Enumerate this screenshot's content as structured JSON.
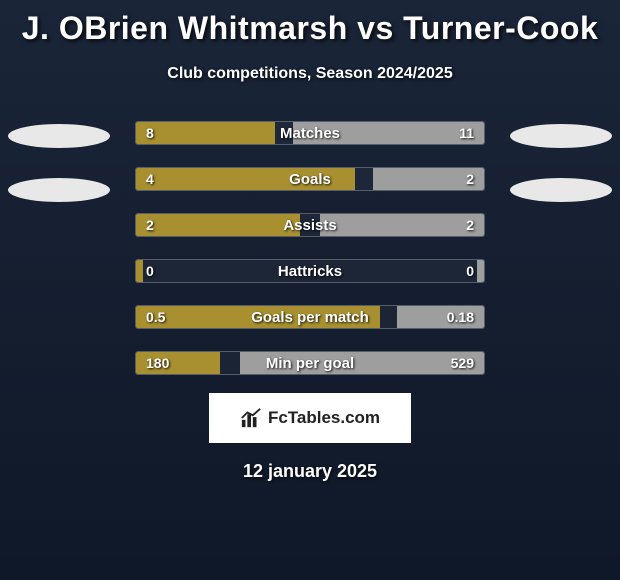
{
  "title": "J. OBrien Whitmarsh vs Turner-Cook",
  "subtitle": "Club competitions, Season 2024/2025",
  "date": "12 january 2025",
  "logo_text": "FcTables.com",
  "avatars": {
    "left_color": "#e8e8e8",
    "right_color": "#e8e8e8"
  },
  "colors": {
    "bar_left": "#a89030",
    "bar_right": "#9e9e9e",
    "background_top": "#1a2538",
    "background_bottom": "#0f1828",
    "border": "rgba(180,180,180,0.4)",
    "text": "#ffffff",
    "text_shadow": "rgba(0,0,0,0.9)"
  },
  "stats": [
    {
      "label": "Matches",
      "left_value": "8",
      "right_value": "11",
      "left_pct": 40,
      "right_pct": 55
    },
    {
      "label": "Goals",
      "left_value": "4",
      "right_value": "2",
      "left_pct": 63,
      "right_pct": 32
    },
    {
      "label": "Assists",
      "left_value": "2",
      "right_value": "2",
      "left_pct": 47,
      "right_pct": 47
    },
    {
      "label": "Hattricks",
      "left_value": "0",
      "right_value": "0",
      "left_pct": 2,
      "right_pct": 2
    },
    {
      "label": "Goals per match",
      "left_value": "0.5",
      "right_value": "0.18",
      "left_pct": 70,
      "right_pct": 25
    },
    {
      "label": "Min per goal",
      "left_value": "180",
      "right_value": "529",
      "left_pct": 24,
      "right_pct": 70
    }
  ]
}
